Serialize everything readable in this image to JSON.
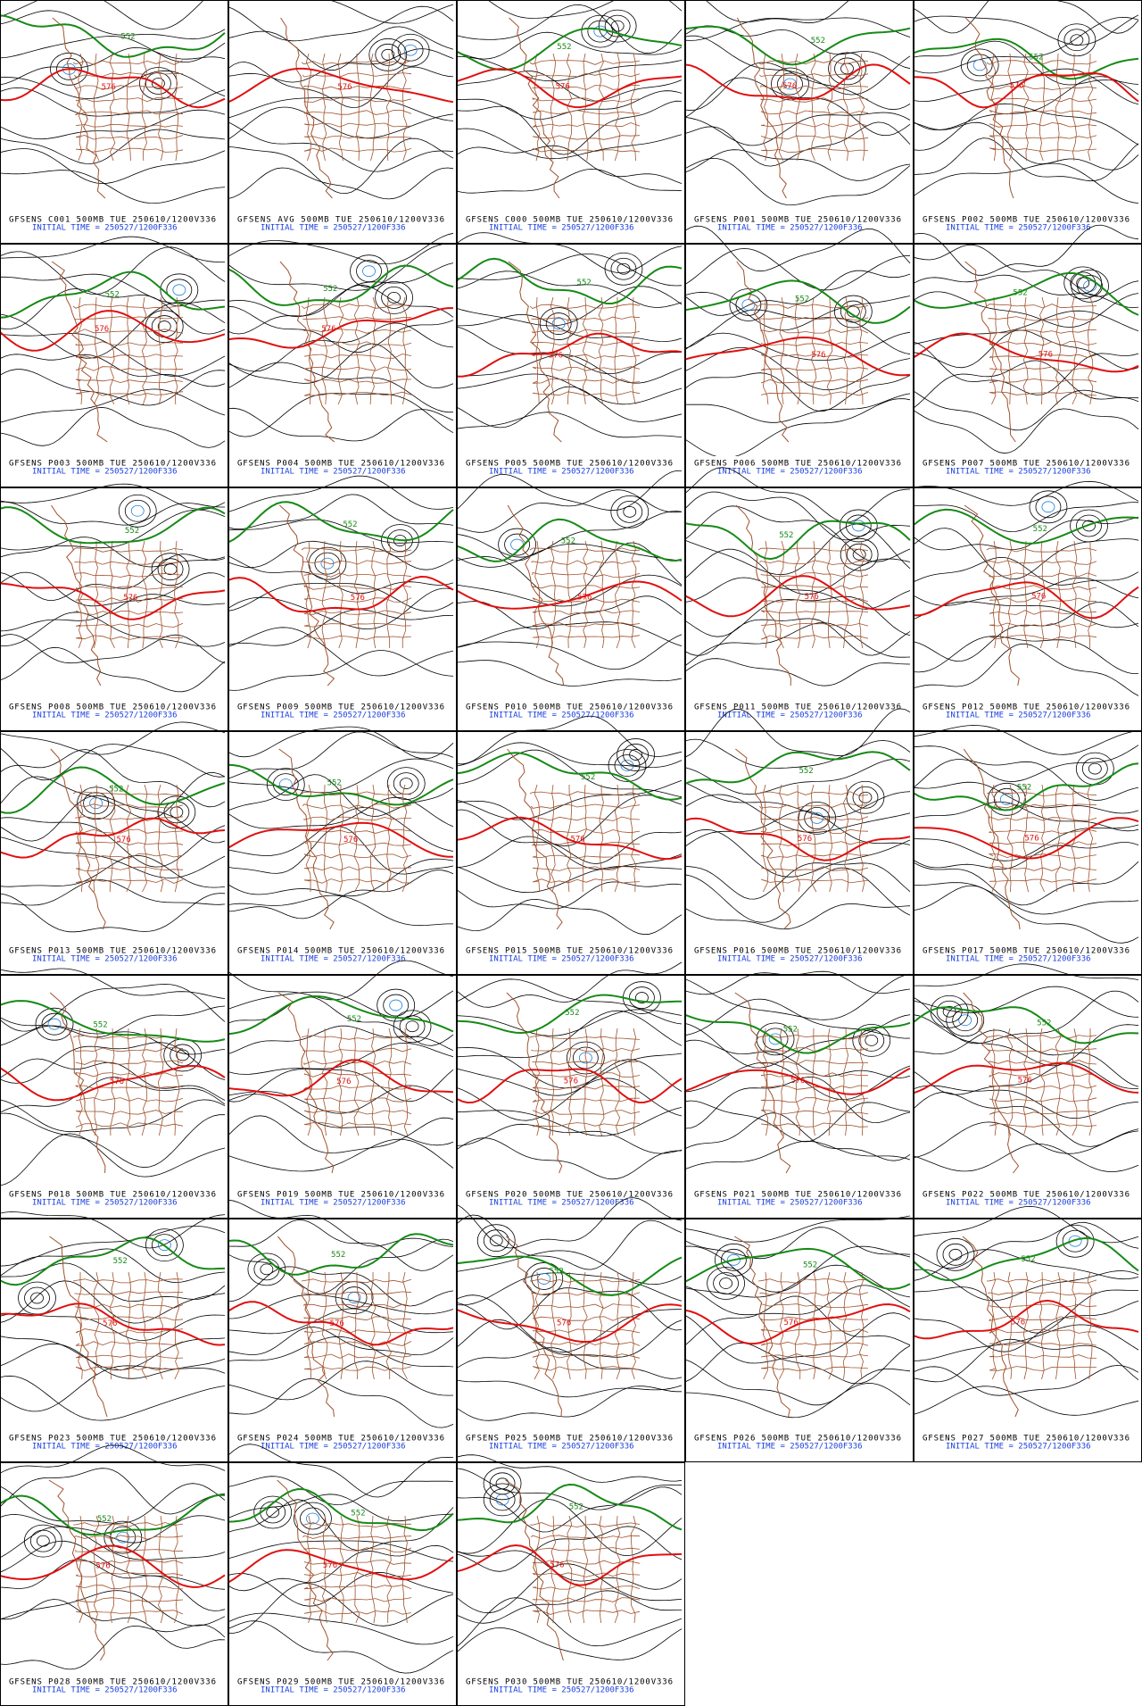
{
  "panels": [
    {
      "title": "GFSENS C001 500MB TUE 250610/1200V336",
      "initial": "INITIAL TIME = 250527/1200F336",
      "labels": [
        "552",
        "576"
      ]
    },
    {
      "title": "GFSENS AVG 500MB TUE 250610/1200V336",
      "initial": "INITIAL TIME = 250527/1200F336",
      "labels": [
        "576"
      ]
    },
    {
      "title": "GFSENS C000 500MB TUE 250610/1200V336",
      "initial": "INITIAL TIME = 250527/1200F336",
      "labels": [
        "552",
        "576"
      ]
    },
    {
      "title": "GFSENS P001 500MB TUE 250610/1200V336",
      "initial": "INITIAL TIME = 250527/1200F336",
      "labels": [
        "552",
        "576"
      ]
    },
    {
      "title": "GFSENS P002 500MB TUE 250610/1200V336",
      "initial": "INITIAL TIME = 250527/1200F336",
      "labels": [
        "552",
        "576"
      ]
    },
    {
      "title": "GFSENS P003 500MB TUE 250610/1200V336",
      "initial": "INITIAL TIME = 250527/1200F336",
      "labels": [
        "552",
        "576"
      ]
    },
    {
      "title": "GFSENS P004 500MB TUE 250610/1200V336",
      "initial": "INITIAL TIME = 250527/1200F336",
      "labels": [
        "552",
        "576"
      ]
    },
    {
      "title": "GFSENS P005 500MB TUE 250610/1200V336",
      "initial": "INITIAL TIME = 250527/1200F336",
      "labels": [
        "552",
        "576"
      ]
    },
    {
      "title": "GFSENS P006 500MB TUE 250610/1200V336",
      "initial": "INITIAL TIME = 250527/1200F336",
      "labels": [
        "552",
        "576"
      ]
    },
    {
      "title": "GFSENS P007 500MB TUE 250610/1200V336",
      "initial": "INITIAL TIME = 250527/1200F336",
      "labels": [
        "552",
        "576"
      ]
    },
    {
      "title": "GFSENS P008 500MB TUE 250610/1200V336",
      "initial": "INITIAL TIME = 250527/1200F336",
      "labels": [
        "552",
        "576"
      ]
    },
    {
      "title": "GFSENS P009 500MB TUE 250610/1200V336",
      "initial": "INITIAL TIME = 250527/1200F336",
      "labels": [
        "552",
        "576"
      ]
    },
    {
      "title": "GFSENS P010 500MB TUE 250610/1200V336",
      "initial": "INITIAL TIME = 250527/1200F336",
      "labels": [
        "552",
        "576"
      ]
    },
    {
      "title": "GFSENS P011 500MB TUE 250610/1200V336",
      "initial": "INITIAL TIME = 250527/1200F336",
      "labels": [
        "552",
        "576"
      ]
    },
    {
      "title": "GFSENS P012 500MB TUE 250610/1200V336",
      "initial": "INITIAL TIME = 250527/1200F336",
      "labels": [
        "552",
        "576"
      ]
    },
    {
      "title": "GFSENS P013 500MB TUE 250610/1200V336",
      "initial": "INITIAL TIME = 250527/1200F336",
      "labels": [
        "552",
        "576"
      ]
    },
    {
      "title": "GFSENS P014 500MB TUE 250610/1200V336",
      "initial": "INITIAL TIME = 250527/1200F336",
      "labels": [
        "552",
        "576"
      ]
    },
    {
      "title": "GFSENS P015 500MB TUE 250610/1200V336",
      "initial": "INITIAL TIME = 250527/1200F336",
      "labels": [
        "552",
        "576"
      ]
    },
    {
      "title": "GFSENS P016 500MB TUE 250610/1200V336",
      "initial": "INITIAL TIME = 250527/1200F336",
      "labels": [
        "552",
        "576"
      ]
    },
    {
      "title": "GFSENS P017 500MB TUE 250610/1200V336",
      "initial": "INITIAL TIME = 250527/1200F336",
      "labels": [
        "552",
        "576"
      ]
    },
    {
      "title": "GFSENS P018 500MB TUE 250610/1200V336",
      "initial": "INITIAL TIME = 250527/1200F336",
      "labels": [
        "552",
        "576"
      ]
    },
    {
      "title": "GFSENS P019 500MB TUE 250610/1200V336",
      "initial": "INITIAL TIME = 250527/1200F336",
      "labels": [
        "552",
        "576"
      ]
    },
    {
      "title": "GFSENS P020 500MB TUE 250610/1200V336",
      "initial": "INITIAL TIME = 250527/1200F336",
      "labels": [
        "552",
        "576"
      ]
    },
    {
      "title": "GFSENS P021 500MB TUE 250610/1200V336",
      "initial": "INITIAL TIME = 250527/1200F336",
      "labels": [
        "552",
        "576"
      ]
    },
    {
      "title": "GFSENS P022 500MB TUE 250610/1200V336",
      "initial": "INITIAL TIME = 250527/1200F336",
      "labels": [
        "552",
        "576"
      ]
    },
    {
      "title": "GFSENS P023 500MB TUE 250610/1200V336",
      "initial": "INITIAL TIME = 250527/1200F336",
      "labels": [
        "552",
        "576"
      ]
    },
    {
      "title": "GFSENS P024 500MB TUE 250610/1200V336",
      "initial": "INITIAL TIME = 250527/1200F336",
      "labels": [
        "552",
        "576"
      ]
    },
    {
      "title": "GFSENS P025 500MB TUE 250610/1200V336",
      "initial": "INITIAL TIME = 250527/1200F336",
      "labels": [
        "552",
        "576"
      ]
    },
    {
      "title": "GFSENS P026 500MB TUE 250610/1200V336",
      "initial": "INITIAL TIME = 250527/1200F336",
      "labels": [
        "552",
        "576"
      ]
    },
    {
      "title": "GFSENS P027 500MB TUE 250610/1200V336",
      "initial": "INITIAL TIME = 250527/1200F336",
      "labels": [
        "552",
        "576"
      ]
    },
    {
      "title": "GFSENS P028 500MB TUE 250610/1200V336",
      "initial": "INITIAL TIME = 250527/1200F336",
      "labels": [
        "552",
        "576"
      ]
    },
    {
      "title": "GFSENS P029 500MB TUE 250610/1200V336",
      "initial": "INITIAL TIME = 250527/1200F336",
      "labels": [
        "552",
        "576"
      ]
    },
    {
      "title": "GFSENS P030 500MB TUE 250610/1200V336",
      "initial": "INITIAL TIME = 250527/1200F336",
      "labels": [
        "552",
        "576"
      ]
    }
  ]
}
